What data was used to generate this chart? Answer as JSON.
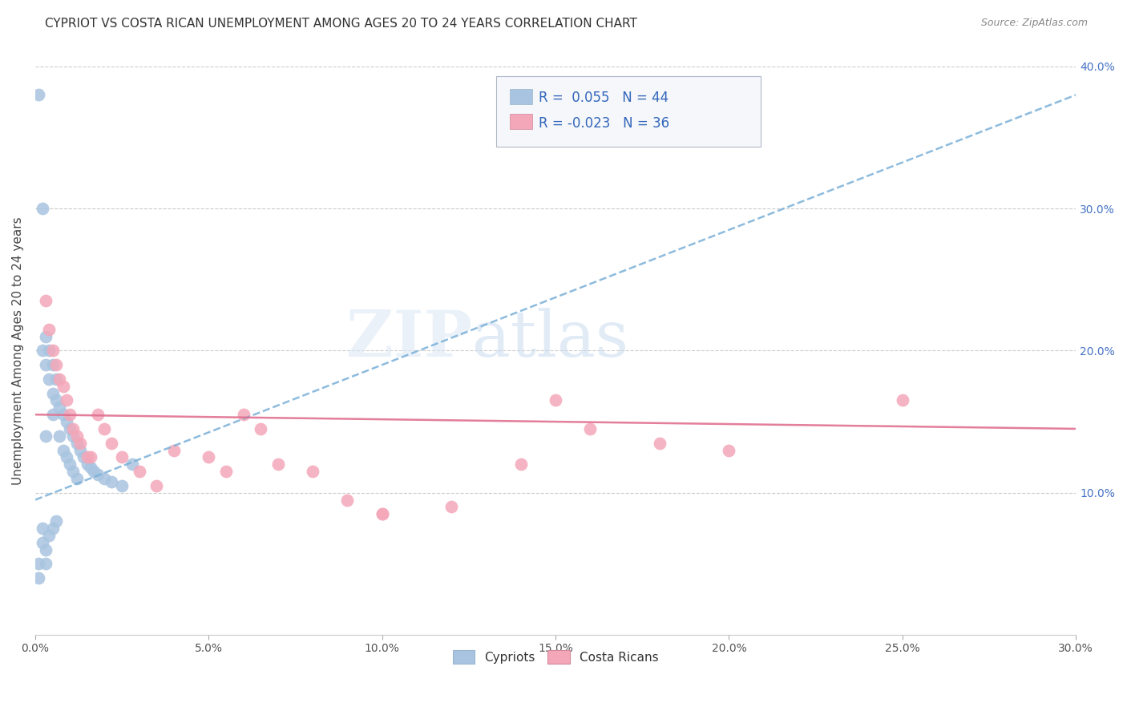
{
  "title": "CYPRIOT VS COSTA RICAN UNEMPLOYMENT AMONG AGES 20 TO 24 YEARS CORRELATION CHART",
  "source": "Source: ZipAtlas.com",
  "ylabel": "Unemployment Among Ages 20 to 24 years",
  "xlim": [
    0.0,
    0.3
  ],
  "ylim": [
    0.0,
    0.4
  ],
  "xticks": [
    0.0,
    0.05,
    0.1,
    0.15,
    0.2,
    0.25,
    0.3
  ],
  "yticks": [
    0.0,
    0.1,
    0.2,
    0.3,
    0.4
  ],
  "cypriot_color": "#a8c4e0",
  "costa_rican_color": "#f4a7b9",
  "trend_blue": "#7ab0d8",
  "trend_pink": "#e07090",
  "cypriot_R": 0.055,
  "cypriot_N": 44,
  "costa_rican_R": -0.023,
  "costa_rican_N": 36,
  "cypriot_x": [
    0.001,
    0.001,
    0.001,
    0.002,
    0.002,
    0.002,
    0.002,
    0.003,
    0.003,
    0.003,
    0.003,
    0.003,
    0.004,
    0.004,
    0.004,
    0.005,
    0.005,
    0.005,
    0.005,
    0.006,
    0.006,
    0.006,
    0.007,
    0.007,
    0.008,
    0.008,
    0.009,
    0.009,
    0.01,
    0.01,
    0.011,
    0.011,
    0.012,
    0.012,
    0.013,
    0.014,
    0.015,
    0.016,
    0.017,
    0.018,
    0.02,
    0.022,
    0.025,
    0.028
  ],
  "cypriot_y": [
    0.38,
    0.05,
    0.04,
    0.3,
    0.2,
    0.075,
    0.065,
    0.21,
    0.19,
    0.14,
    0.06,
    0.05,
    0.2,
    0.18,
    0.07,
    0.19,
    0.17,
    0.155,
    0.075,
    0.18,
    0.165,
    0.08,
    0.16,
    0.14,
    0.155,
    0.13,
    0.15,
    0.125,
    0.145,
    0.12,
    0.14,
    0.115,
    0.135,
    0.11,
    0.13,
    0.125,
    0.12,
    0.118,
    0.115,
    0.113,
    0.11,
    0.108,
    0.105,
    0.12
  ],
  "costa_rican_x": [
    0.003,
    0.004,
    0.005,
    0.006,
    0.007,
    0.008,
    0.009,
    0.01,
    0.011,
    0.012,
    0.013,
    0.015,
    0.016,
    0.018,
    0.02,
    0.022,
    0.025,
    0.03,
    0.035,
    0.04,
    0.05,
    0.055,
    0.06,
    0.065,
    0.07,
    0.08,
    0.09,
    0.1,
    0.12,
    0.14,
    0.15,
    0.16,
    0.18,
    0.2,
    0.1,
    0.25
  ],
  "costa_rican_y": [
    0.235,
    0.215,
    0.2,
    0.19,
    0.18,
    0.175,
    0.165,
    0.155,
    0.145,
    0.14,
    0.135,
    0.125,
    0.125,
    0.155,
    0.145,
    0.135,
    0.125,
    0.115,
    0.105,
    0.13,
    0.125,
    0.115,
    0.155,
    0.145,
    0.12,
    0.115,
    0.095,
    0.085,
    0.09,
    0.12,
    0.165,
    0.145,
    0.135,
    0.13,
    0.085,
    0.165
  ],
  "cypriot_trendline_x": [
    0.0,
    0.3
  ],
  "cypriot_trendline_y": [
    0.095,
    0.38
  ],
  "costa_rican_trendline_x": [
    0.0,
    0.3
  ],
  "costa_rican_trendline_y": [
    0.155,
    0.145
  ]
}
